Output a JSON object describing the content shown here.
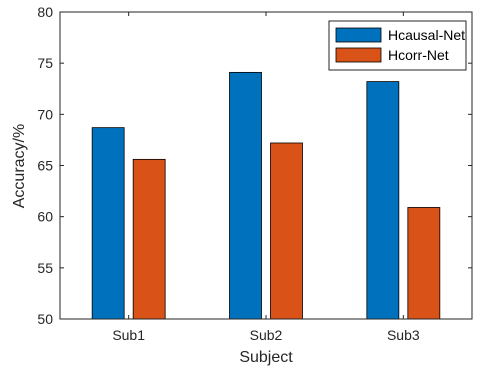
{
  "chart_data": {
    "type": "bar",
    "xlabel": "Subject",
    "ylabel": "Accuracy/%",
    "ylim": [
      50,
      80
    ],
    "yticks": [
      50,
      55,
      60,
      65,
      70,
      75,
      80
    ],
    "categories": [
      "Sub1",
      "Sub2",
      "Sub3"
    ],
    "series": [
      {
        "name": "Hcausal-Net",
        "color": "#0072BD",
        "values": [
          68.7,
          74.1,
          73.2
        ]
      },
      {
        "name": "Hcorr-Net",
        "color": "#D95319",
        "values": [
          65.6,
          67.2,
          60.9
        ]
      }
    ],
    "legend": {
      "position": "top-right"
    },
    "grid": false
  }
}
